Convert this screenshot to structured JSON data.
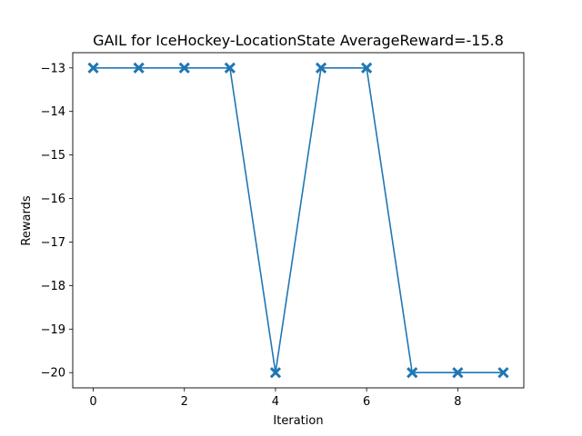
{
  "chart_data": {
    "type": "line",
    "title": "GAIL for IceHockey-LocationState AverageReward=-15.8",
    "xlabel": "Iteration",
    "ylabel": "Rewards",
    "x": [
      0,
      1,
      2,
      3,
      4,
      5,
      6,
      7,
      8,
      9
    ],
    "series": [
      {
        "values": [
          -13,
          -13,
          -13,
          -13,
          -20,
          -13,
          -13,
          -20,
          -20,
          -20
        ],
        "color": "#1f77b4",
        "marker": "x-filled"
      }
    ],
    "xlim": [
      -0.45,
      9.45
    ],
    "ylim": [
      -20.35,
      -12.65
    ],
    "xticks": [
      0,
      2,
      4,
      6,
      8
    ],
    "xtick_labels": [
      "0",
      "2",
      "4",
      "6",
      "8"
    ],
    "yticks": [
      -13,
      -14,
      -15,
      -16,
      -17,
      -18,
      -19,
      -20
    ],
    "ytick_labels": [
      "−13",
      "−14",
      "−15",
      "−16",
      "−17",
      "−18",
      "−19",
      "−20"
    ],
    "grid": false,
    "legend": "none"
  }
}
